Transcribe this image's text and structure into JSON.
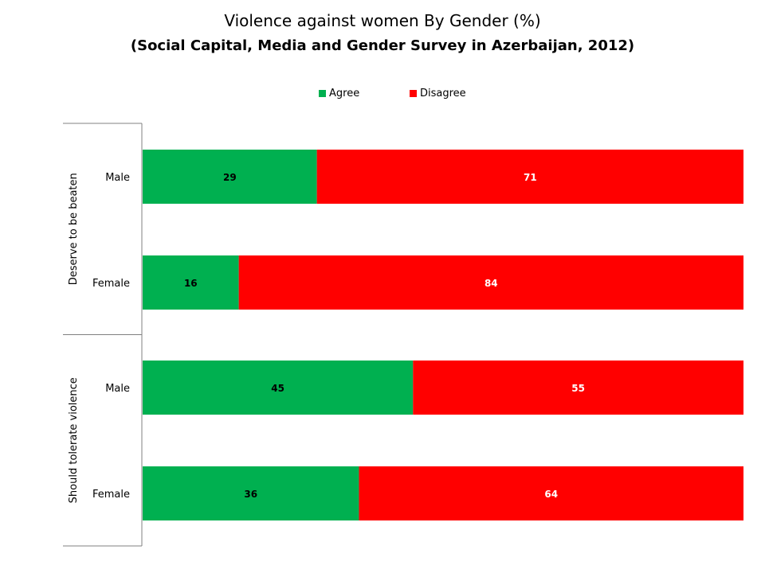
{
  "chart_data": {
    "type": "bar",
    "orientation": "horizontal",
    "stacked": true,
    "title": "Violence against women By Gender (%)",
    "subtitle": "(Social Capital, Media and Gender Survey in Azerbaijan, 2012)",
    "groups": [
      {
        "label": "Deserve to be beaten",
        "categories": [
          "Male",
          "Female"
        ]
      },
      {
        "label": "Should tolerate violence",
        "categories": [
          "Male",
          "Female"
        ]
      }
    ],
    "categories": [
      "Male",
      "Female",
      "Male",
      "Female"
    ],
    "series": [
      {
        "name": "Agree",
        "color": "#00b050",
        "values": [
          29,
          16,
          45,
          36
        ],
        "label_color": "#000000"
      },
      {
        "name": "Disagree",
        "color": "#ff0000",
        "values": [
          71,
          84,
          55,
          64
        ],
        "label_color": "#ffffff"
      }
    ],
    "xlim": [
      0,
      100
    ],
    "grid": false,
    "legend_position": "top"
  }
}
